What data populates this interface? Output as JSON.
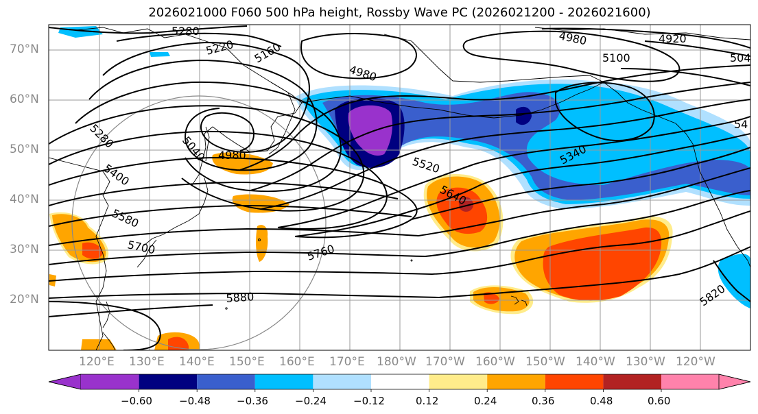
{
  "title": "2026021000 F060 500 hPa height, Rossby Wave PC (2026021200 - 2026021600)",
  "lat_labels": [
    "70°N",
    "60°N",
    "50°N",
    "40°N",
    "30°N",
    "20°N"
  ],
  "lon_labels": [
    "120°E",
    "130°E",
    "140°E",
    "150°E",
    "160°E",
    "170°E",
    "180°W",
    "170°W",
    "160°W",
    "150°W",
    "140°W",
    "130°W",
    "120°W"
  ],
  "contour_labels": [
    "5280",
    "5220",
    "5160",
    "4980",
    "4980",
    "5100",
    "4920",
    "504",
    "5280",
    "5040",
    "4980",
    "5400",
    "5580",
    "5700",
    "5520",
    "5640",
    "5340",
    "5760",
    "5880",
    "5820",
    "54"
  ],
  "colorbar": {
    "ticks": [
      "−0.60",
      "−0.48",
      "−0.36",
      "−0.24",
      "−0.12",
      "0.12",
      "0.24",
      "0.36",
      "0.48",
      "0.60"
    ],
    "colors": [
      "#9932cc",
      "#000080",
      "#3a5fcd",
      "#00bfff",
      "#b0e0ff",
      "#ffffff",
      "#ffec8b",
      "#ffa500",
      "#ff4500",
      "#b22222",
      "#ff82ab"
    ]
  }
}
